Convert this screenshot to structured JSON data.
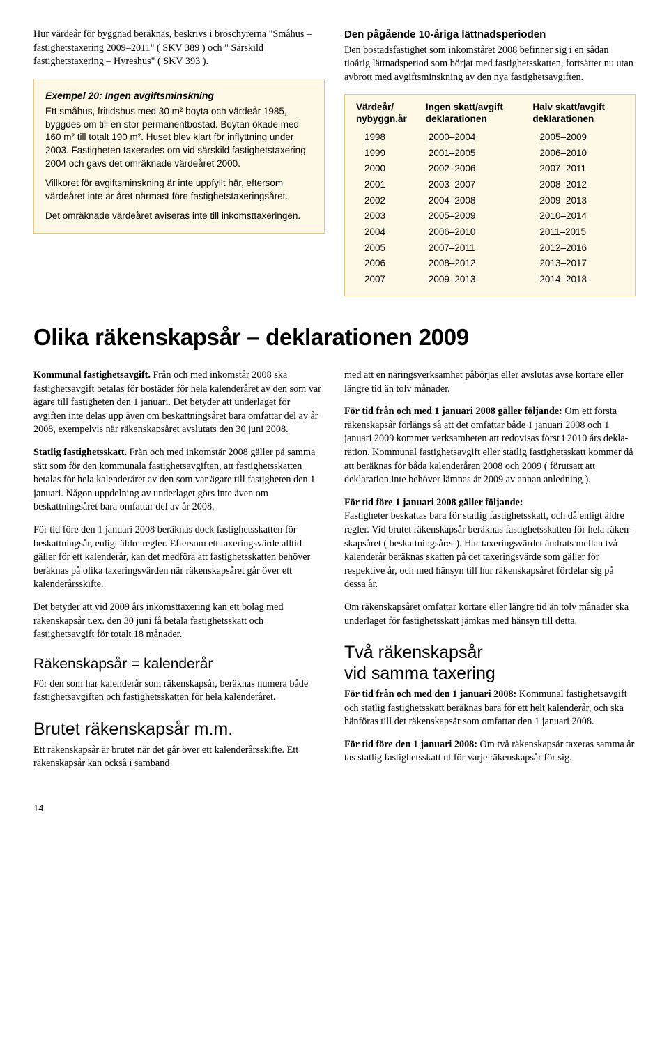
{
  "top": {
    "left_intro": "Hur värdeår för byggnad beräknas, beskrivs i bro­schyrerna \"Småhus – fastighetstaxering 2009–2011\" ( SKV 389 ) och \" Särskild fastighetstaxering – Hyres­hus\" ( SKV 393 ).",
    "example": {
      "title": "Exempel 20: Ingen avgiftsminskning",
      "p1": "Ett småhus, fritidshus med 30 m² boyta och värde­år 1985, byggdes om till en stor permanentbostad. Boytan ökade med 160 m² till totalt 190 m². Huset blev klart för inflyttning under 2003. Fastigheten taxerades om vid särskild fastighetstaxering 2004 och gavs det omräknade värdeåret 2000.",
      "p2": "Villkoret för avgiftsminskning är inte uppfyllt här, eftersom värdeåret inte är året närmast före fastig­hetstaxeringsåret.",
      "p3": "Det omräknade värdeåret aviseras inte till inkomst­taxeringen."
    },
    "right_heading": "Den pågående 10-åriga lättnadsperioden",
    "right_para": "Den bostadsfastighet som inkomståret 2008 befin­ner sig i en sådan tioårig lättnadsperiod som börjat med fastighetsskatten, fortsätter nu utan avbrott med avgiftsminskning av den nya fastighetsavgiften.",
    "table": {
      "h1a": "Värdeår/",
      "h1b": "nybyggn.år",
      "h2a": "Ingen skatt/avgift",
      "h2b": "deklarationen",
      "h3a": "Halv skatt/avgift",
      "h3b": "deklarationen",
      "rows": [
        [
          "1998",
          "2000–2004",
          "2005–2009"
        ],
        [
          "1999",
          "2001–2005",
          "2006–2010"
        ],
        [
          "2000",
          "2002–2006",
          "2007–2011"
        ],
        [
          "2001",
          "2003–2007",
          "2008–2012"
        ],
        [
          "2002",
          "2004–2008",
          "2009–2013"
        ],
        [
          "2003",
          "2005–2009",
          "2010–2014"
        ],
        [
          "2004",
          "2006–2010",
          "2011–2015"
        ],
        [
          "2005",
          "2007–2011",
          "2012–2016"
        ],
        [
          "2006",
          "2008–2012",
          "2013–2017"
        ],
        [
          "2007",
          "2009–2013",
          "2014–2018"
        ]
      ]
    }
  },
  "main_heading": "Olika räkenskapsår – deklarationen 2009",
  "left": {
    "p1_bold": "Kommunal fastighetsavgift.",
    "p1": " Från och med inkomst­år 2008 ska fastighetsavgift betalas för bostäder för hela kalenderåret av den som var ägare till fastigheten den 1 januari. Det betyder att underlaget för avgiften inte delas upp även om beskattningsåret bara omfat­tar del av år 2008, exempelvis när räkenskapsåret avslutats den 30 juni 2008.",
    "p2_bold": "Statlig fastighetsskatt.",
    "p2": " Från och med inkomstår 2008 gäller på samma sätt som för den kommunala fastighetsavgiften, att fastighetsskatten betalas för hela kalenderåret av den som var ägare till fastigheten den 1 januari. Någon uppdelning av underlaget görs inte även om beskattningsåret bara omfattar del av år 2008.",
    "p3": "För tid före den 1 januari 2008 beräknas dock fastig­hetsskatten för beskattningsår, enligt äldre regler. Eftersom ett taxeringsvärde alltid gäller för ett kalen­derår, kan det medföra att fastighetsskatten behöver beräknas på olika taxeringsvärden när räkenskaps­året går över ett kalenderårsskifte.",
    "p4": "Det betyder att vid 2009 års inkomsttaxering kan ett bolag med räkenskapsår t.ex. den 30 juni få betala fas­tighetsskatt och fastighetsavgift för totalt 18 månader.",
    "h1": "Räkenskapsår = kalenderår",
    "p5": "För den som har kalenderår som räkenskapsår, beräk­nas numera både fastighetsavgiften och fastighets­skatten för hela kalenderåret.",
    "h2": "Brutet räkenskapsår m.m.",
    "p6": "Ett räkenskapsår är brutet när det går över ett kalen­derårsskifte. Ett räkenskapsår kan också i samband"
  },
  "right": {
    "p1": "med att en näringsverksamhet påbörjas eller avslutas avse kortare eller längre tid än tolv månader.",
    "p2_bold": "För tid från och med 1 januari 2008 gäller följ­ande:",
    "p2": " Om ett första räkenskapsår förlängs så att det omfattar både 1 januari 2008 och 1 januari 2009 kom­mer verksamheten att redovisas först i 2010 års dekla­ration. Kommunal fastighetsavgift eller statlig fastig­hetsskatt kommer då att beräknas för båda kalender­åren 2008 och 2009 ( förutsatt att deklaration inte behöver lämnas år 2009 av annan anledning ).",
    "p3_bold": "För tid före 1 januari 2008 gäller följande:",
    "p3": " Fastigheter beskattas bara för statlig fastighets­skatt, och då enligt äldre regler. Vid brutet räken­skapsår beräknas fastighetsskatten för hela räken­skapsåret ( beskattningsåret ). Har taxeringsvärdet ändrats mellan två kalenderår beräknas skatten på det taxeringsvärde som gäller för respektive år, och med hänsyn till hur räkenskapsåret fördelar sig på dessa år.",
    "p4": "Om räkenskapsåret omfattar kortare eller längre tid än tolv månader ska underlaget för fastighetsskatt jämkas med hänsyn till detta.",
    "h1a": "Två räkenskapsår",
    "h1b": "vid samma taxering",
    "p5_bold": "För tid från och med den 1 januari 2008:",
    "p5": " Kommu­nal fastighetsavgift och statlig fastighetsskatt beräk­nas bara för ett helt kalenderår, och ska hänföras till det räkenskapsår som omfattar den 1 januari 2008.",
    "p6_bold": "För tid före den 1 januari 2008:",
    "p6": " Om två räken­skapsår taxeras samma år tas statlig fastighetsskatt ut för varje räkenskapsår för sig."
  },
  "page_number": "14"
}
